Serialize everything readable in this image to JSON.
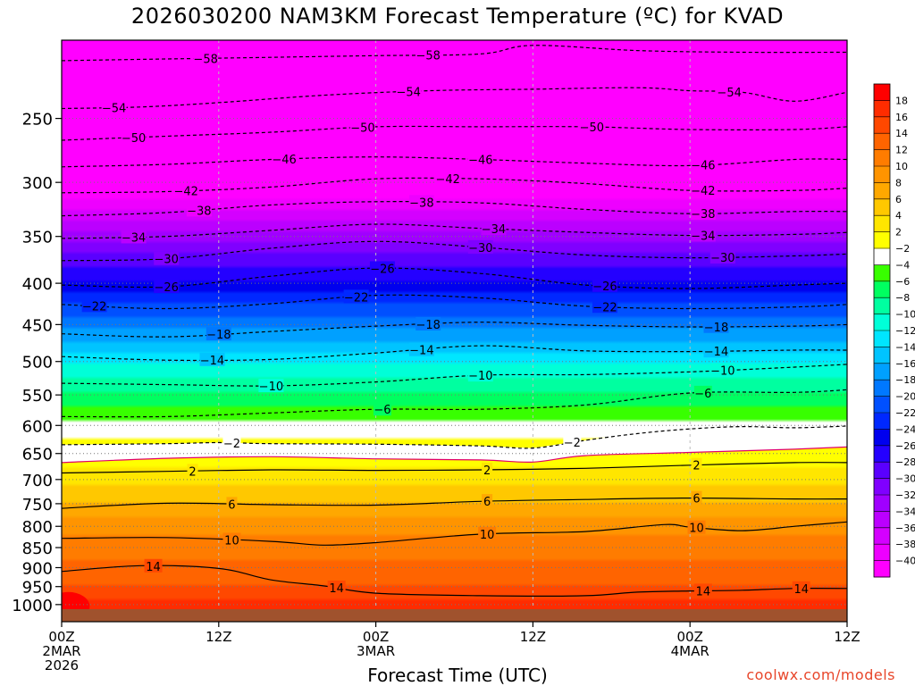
{
  "title": "2026030200 NAM3KM Forecast Temperature (ºC) for KVAD",
  "credit": "coolwx.com/models",
  "chart_data": {
    "type": "heatmap",
    "title": "2026030200 NAM3KM Forecast Temperature (ºC) for KVAD",
    "xlabel": "Forecast Time (UTC)",
    "ylabel": "",
    "x_ticks": [
      {
        "hour": 0,
        "lines": [
          "00Z",
          "2MAR",
          "2026"
        ]
      },
      {
        "hour": 12,
        "lines": [
          "12Z"
        ]
      },
      {
        "hour": 24,
        "lines": [
          "00Z",
          "3MAR"
        ]
      },
      {
        "hour": 36,
        "lines": [
          "12Z"
        ]
      },
      {
        "hour": 48,
        "lines": [
          "00Z",
          "4MAR"
        ]
      },
      {
        "hour": 60,
        "lines": [
          "12Z"
        ]
      }
    ],
    "xlim": [
      0,
      60
    ],
    "y_scale": "log-pressure",
    "ylim_hPa": [
      1050,
      200
    ],
    "y_ticks": [
      250,
      300,
      350,
      400,
      450,
      500,
      550,
      600,
      650,
      700,
      750,
      800,
      850,
      900,
      950,
      1000
    ],
    "grid": true,
    "colorbar": {
      "levels": [
        -40,
        -38,
        -36,
        -34,
        -32,
        -30,
        -28,
        -26,
        -24,
        -22,
        -20,
        -18,
        -16,
        -14,
        -12,
        -10,
        -8,
        -6,
        -4,
        -2,
        2,
        4,
        6,
        8,
        10,
        12,
        14,
        16,
        18
      ],
      "colors": [
        "#ff00ff",
        "#ee00ff",
        "#d400ff",
        "#bb00ff",
        "#a000ff",
        "#8000ff",
        "#5a00ff",
        "#2400ff",
        "#0000ee",
        "#0028ff",
        "#0050ff",
        "#0078ff",
        "#00a0ff",
        "#00c4ff",
        "#00e6ff",
        "#00ffd8",
        "#00ffa0",
        "#00ff60",
        "#38ff00",
        "#ffffff",
        "#ffff00",
        "#ffe600",
        "#ffc800",
        "#ffa800",
        "#ff9400",
        "#ff7c00",
        "#ff6400",
        "#ff4800",
        "#ff2c00",
        "#ff0000"
      ]
    },
    "surface_hPa": 1015,
    "series": [
      {
        "level": -58,
        "label_hours": [
          11,
          28
        ],
        "points": [
          [
            0,
            212
          ],
          [
            8,
            211
          ],
          [
            16,
            210
          ],
          [
            24,
            209
          ],
          [
            32,
            208
          ],
          [
            36,
            203
          ],
          [
            44,
            206
          ],
          [
            52,
            207
          ],
          [
            60,
            207
          ]
        ]
      },
      {
        "level": -54,
        "label_hours": [
          4,
          26.5,
          51
        ],
        "points": [
          [
            0,
            243
          ],
          [
            6,
            242
          ],
          [
            12,
            239
          ],
          [
            20,
            234
          ],
          [
            28,
            231
          ],
          [
            36,
            230
          ],
          [
            44,
            229
          ],
          [
            48,
            231
          ],
          [
            52,
            232
          ],
          [
            56,
            238
          ],
          [
            60,
            232
          ]
        ]
      },
      {
        "level": -50,
        "label_hours": [
          5.5,
          23,
          40.5
        ],
        "points": [
          [
            0,
            266
          ],
          [
            8,
            263
          ],
          [
            16,
            260
          ],
          [
            24,
            256
          ],
          [
            32,
            256
          ],
          [
            40,
            256
          ],
          [
            48,
            258
          ],
          [
            56,
            258
          ],
          [
            60,
            256
          ]
        ]
      },
      {
        "level": -46,
        "label_hours": [
          17,
          32,
          49
        ],
        "points": [
          [
            0,
            287
          ],
          [
            8,
            285
          ],
          [
            16,
            281
          ],
          [
            24,
            279
          ],
          [
            32,
            281
          ],
          [
            40,
            284
          ],
          [
            48,
            286
          ],
          [
            56,
            281
          ],
          [
            60,
            281
          ]
        ]
      },
      {
        "level": -42,
        "label_hours": [
          9.5,
          29.5,
          49
        ],
        "points": [
          [
            0,
            309
          ],
          [
            8,
            308
          ],
          [
            16,
            304
          ],
          [
            24,
            297
          ],
          [
            32,
            297
          ],
          [
            40,
            301
          ],
          [
            48,
            307
          ],
          [
            56,
            307
          ],
          [
            60,
            305
          ]
        ]
      },
      {
        "level": -38,
        "label_hours": [
          10.5,
          27.5,
          49
        ],
        "points": [
          [
            0,
            330
          ],
          [
            8,
            327
          ],
          [
            16,
            320
          ],
          [
            24,
            317
          ],
          [
            32,
            318
          ],
          [
            40,
            324
          ],
          [
            48,
            328
          ],
          [
            56,
            326
          ],
          [
            60,
            326
          ]
        ]
      },
      {
        "level": -34,
        "label_hours": [
          5.5,
          33,
          49
        ],
        "points": [
          [
            0,
            352
          ],
          [
            8,
            350
          ],
          [
            16,
            344
          ],
          [
            24,
            338
          ],
          [
            32,
            342
          ],
          [
            40,
            346
          ],
          [
            48,
            349
          ],
          [
            56,
            348
          ],
          [
            60,
            346
          ]
        ]
      },
      {
        "level": -30,
        "label_hours": [
          8,
          32,
          50.5
        ],
        "points": [
          [
            0,
            375
          ],
          [
            8,
            373
          ],
          [
            16,
            362
          ],
          [
            24,
            355
          ],
          [
            32,
            361
          ],
          [
            40,
            369
          ],
          [
            48,
            372
          ],
          [
            56,
            370
          ],
          [
            60,
            368
          ]
        ]
      },
      {
        "level": -26,
        "label_hours": [
          8,
          24.5,
          41.5
        ],
        "points": [
          [
            0,
            402
          ],
          [
            8,
            404
          ],
          [
            16,
            392
          ],
          [
            24,
            383
          ],
          [
            32,
            389
          ],
          [
            40,
            402
          ],
          [
            48,
            406
          ],
          [
            56,
            402
          ],
          [
            60,
            400
          ]
        ]
      },
      {
        "level": -22,
        "label_hours": [
          2.5,
          22.5,
          41.5
        ],
        "points": [
          [
            0,
            425
          ],
          [
            8,
            430
          ],
          [
            16,
            424
          ],
          [
            24,
            414
          ],
          [
            32,
            417
          ],
          [
            40,
            427
          ],
          [
            48,
            430
          ],
          [
            56,
            428
          ],
          [
            60,
            425
          ]
        ]
      },
      {
        "level": -18,
        "label_hours": [
          12,
          28,
          50
        ],
        "points": [
          [
            0,
            462
          ],
          [
            8,
            466
          ],
          [
            16,
            459
          ],
          [
            24,
            452
          ],
          [
            32,
            447
          ],
          [
            40,
            451
          ],
          [
            48,
            453
          ],
          [
            56,
            452
          ],
          [
            60,
            450
          ]
        ]
      },
      {
        "level": -14,
        "label_hours": [
          11.5,
          27.5,
          50
        ],
        "points": [
          [
            0,
            493
          ],
          [
            8,
            498
          ],
          [
            16,
            497
          ],
          [
            24,
            488
          ],
          [
            32,
            478
          ],
          [
            40,
            485
          ],
          [
            48,
            486
          ],
          [
            56,
            484
          ],
          [
            60,
            484
          ]
        ]
      },
      {
        "level": -10,
        "label_hours": [
          16,
          32,
          50.5
        ],
        "points": [
          [
            0,
            532
          ],
          [
            8,
            534
          ],
          [
            16,
            536
          ],
          [
            24,
            530
          ],
          [
            32,
            520
          ],
          [
            40,
            519
          ],
          [
            48,
            515
          ],
          [
            56,
            508
          ],
          [
            60,
            504
          ]
        ]
      },
      {
        "level": -6,
        "label_hours": [
          24.5,
          49
        ],
        "points": [
          [
            0,
            585
          ],
          [
            8,
            585
          ],
          [
            16,
            579
          ],
          [
            24,
            573
          ],
          [
            32,
            573
          ],
          [
            40,
            566
          ],
          [
            48,
            547
          ],
          [
            56,
            546
          ],
          [
            60,
            542
          ]
        ]
      },
      {
        "level": -2,
        "label_hours": [
          13,
          39
        ],
        "points": [
          [
            0,
            634
          ],
          [
            8,
            632
          ],
          [
            12,
            630
          ],
          [
            16,
            632
          ],
          [
            24,
            633
          ],
          [
            32,
            636
          ],
          [
            36,
            640
          ],
          [
            40,
            626
          ],
          [
            44,
            614
          ],
          [
            48,
            606
          ],
          [
            52,
            602
          ],
          [
            56,
            604
          ],
          [
            60,
            601
          ]
        ]
      },
      {
        "level": 0,
        "label_hours": [],
        "points": [
          [
            0,
            667
          ],
          [
            8,
            659
          ],
          [
            16,
            656
          ],
          [
            24,
            660
          ],
          [
            32,
            662
          ],
          [
            36,
            666
          ],
          [
            40,
            654
          ],
          [
            48,
            648
          ],
          [
            56,
            642
          ],
          [
            60,
            638
          ]
        ]
      },
      {
        "level": 2,
        "label_hours": [
          10,
          32.5,
          48.5
        ],
        "points": [
          [
            0,
            687
          ],
          [
            8,
            684
          ],
          [
            16,
            681
          ],
          [
            24,
            682
          ],
          [
            32,
            681
          ],
          [
            40,
            678
          ],
          [
            48,
            672
          ],
          [
            56,
            667
          ],
          [
            60,
            667
          ]
        ]
      },
      {
        "level": 6,
        "label_hours": [
          13,
          32.5,
          48.5
        ],
        "points": [
          [
            0,
            760
          ],
          [
            8,
            749
          ],
          [
            16,
            752
          ],
          [
            24,
            753
          ],
          [
            32,
            745
          ],
          [
            40,
            741
          ],
          [
            48,
            738
          ],
          [
            56,
            740
          ],
          [
            60,
            740
          ]
        ]
      },
      {
        "level": 10,
        "label_hours": [
          13,
          32.5,
          48.5
        ],
        "points": [
          [
            0,
            828
          ],
          [
            8,
            826
          ],
          [
            16,
            835
          ],
          [
            20,
            844
          ],
          [
            24,
            838
          ],
          [
            32,
            818
          ],
          [
            40,
            812
          ],
          [
            46,
            796
          ],
          [
            48,
            802
          ],
          [
            52,
            810
          ],
          [
            56,
            800
          ],
          [
            60,
            790
          ]
        ]
      },
      {
        "level": 14,
        "label_hours": [
          7,
          21,
          49,
          56.5
        ],
        "points": [
          [
            0,
            910
          ],
          [
            6,
            895
          ],
          [
            12,
            902
          ],
          [
            16,
            932
          ],
          [
            20,
            948
          ],
          [
            24,
            968
          ],
          [
            32,
            975
          ],
          [
            40,
            975
          ],
          [
            44,
            965
          ],
          [
            48,
            962
          ],
          [
            52,
            960
          ],
          [
            56,
            955
          ],
          [
            60,
            955
          ]
        ]
      }
    ]
  }
}
